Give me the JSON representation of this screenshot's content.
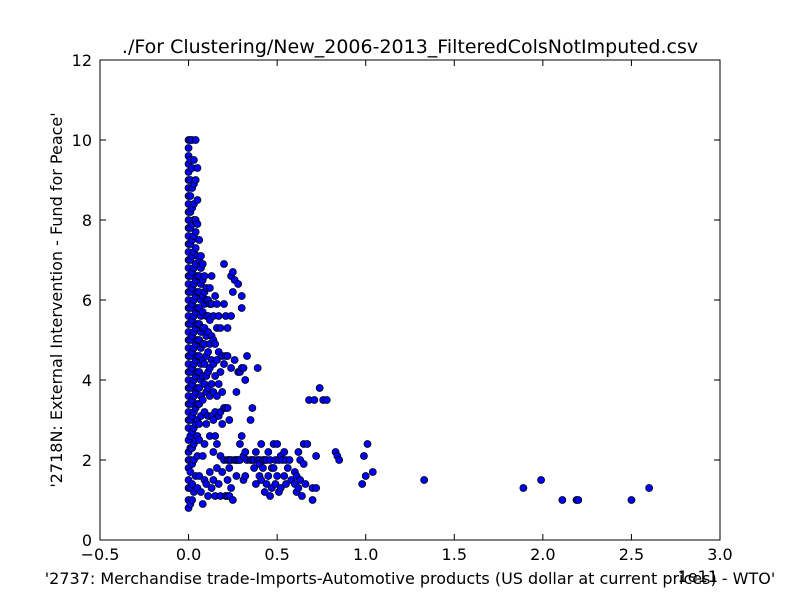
{
  "chart_data": {
    "type": "scatter",
    "title": "./For Clustering/New_2006-2013_FilteredColsNotImputed.csv",
    "xlabel": "'2737: Merchandise trade-Imports-Automotive products (US dollar at current prices) - WTO'",
    "ylabel": "'2718N: External Intervention - Fund for Peace'",
    "x_offset_label": "1e11",
    "xlim": [
      -0.5,
      3.0
    ],
    "ylim": [
      0,
      12
    ],
    "xticks": [
      -0.5,
      0.0,
      0.5,
      1.0,
      1.5,
      2.0,
      2.5,
      3.0
    ],
    "xtick_labels": [
      "−0.5",
      "0.0",
      "0.5",
      "1.0",
      "1.5",
      "2.0",
      "2.5",
      "3.0"
    ],
    "yticks": [
      0,
      2,
      4,
      6,
      8,
      10,
      12
    ],
    "ytick_labels": [
      "0",
      "2",
      "4",
      "6",
      "8",
      "10",
      "12"
    ],
    "grid": false,
    "marker_color": "#0000ff",
    "x_units_note": "x values in units of 1e11",
    "series": [
      {
        "x": [
          0.0,
          0.0,
          0.0,
          0.0,
          0.0,
          0.0,
          0.0,
          0.0,
          0.0,
          0.0,
          0.0,
          0.0,
          0.0,
          0.0,
          0.0,
          0.0,
          0.0,
          0.0,
          0.0,
          0.0,
          0.0,
          0.0,
          0.0,
          0.0,
          0.0,
          0.0,
          0.0,
          0.0,
          0.0,
          0.0,
          0.0,
          0.0,
          0.0,
          0.0,
          0.0,
          0.0,
          0.0,
          0.0,
          0.0,
          0.0,
          0.0,
          0.0,
          0.0,
          0.0,
          0.0,
          0.01,
          0.01,
          0.01,
          0.01,
          0.01,
          0.01,
          0.01,
          0.01,
          0.01,
          0.01,
          0.01,
          0.01,
          0.01,
          0.01,
          0.01,
          0.01,
          0.01,
          0.01,
          0.01,
          0.01,
          0.01,
          0.01,
          0.01,
          0.01,
          0.02,
          0.02,
          0.02,
          0.02,
          0.02,
          0.02,
          0.02,
          0.02,
          0.02,
          0.02,
          0.02,
          0.02,
          0.02,
          0.02,
          0.02,
          0.02,
          0.02,
          0.02,
          0.02,
          0.02,
          0.02,
          0.02,
          0.03,
          0.03,
          0.03,
          0.03,
          0.03,
          0.03,
          0.03,
          0.03,
          0.03,
          0.03,
          0.03,
          0.03,
          0.03,
          0.03,
          0.03,
          0.03,
          0.03,
          0.03,
          0.03,
          0.03,
          0.04,
          0.04,
          0.04,
          0.04,
          0.04,
          0.04,
          0.04,
          0.04,
          0.04,
          0.04,
          0.04,
          0.04,
          0.04,
          0.04,
          0.04,
          0.04,
          0.04,
          0.04,
          0.05,
          0.05,
          0.05,
          0.05,
          0.05,
          0.05,
          0.05,
          0.05,
          0.05,
          0.05,
          0.05,
          0.05,
          0.05,
          0.05,
          0.05,
          0.05,
          0.05,
          0.06,
          0.06,
          0.06,
          0.06,
          0.06,
          0.06,
          0.06,
          0.06,
          0.06,
          0.06,
          0.06,
          0.06,
          0.06,
          0.06,
          0.07,
          0.07,
          0.07,
          0.07,
          0.07,
          0.07,
          0.07,
          0.07,
          0.07,
          0.07,
          0.07,
          0.07,
          0.08,
          0.08,
          0.08,
          0.08,
          0.08,
          0.08,
          0.08,
          0.08,
          0.08,
          0.08,
          0.08,
          0.09,
          0.09,
          0.09,
          0.09,
          0.09,
          0.09,
          0.09,
          0.09,
          0.09,
          0.09,
          0.1,
          0.1,
          0.1,
          0.1,
          0.1,
          0.1,
          0.1,
          0.1,
          0.1,
          0.11,
          0.11,
          0.11,
          0.11,
          0.11,
          0.11,
          0.11,
          0.11,
          0.12,
          0.12,
          0.12,
          0.12,
          0.12,
          0.12,
          0.12,
          0.12,
          0.13,
          0.13,
          0.13,
          0.13,
          0.13,
          0.13,
          0.13,
          0.14,
          0.14,
          0.14,
          0.14,
          0.14,
          0.14,
          0.14,
          0.15,
          0.15,
          0.15,
          0.15,
          0.15,
          0.15,
          0.16,
          0.16,
          0.16,
          0.16,
          0.16,
          0.16,
          0.17,
          0.17,
          0.17,
          0.17,
          0.17,
          0.18,
          0.18,
          0.18,
          0.18,
          0.18,
          0.19,
          0.19,
          0.19,
          0.19,
          0.2,
          0.2,
          0.2,
          0.2,
          0.2,
          0.21,
          0.21,
          0.21,
          0.21,
          0.22,
          0.22,
          0.22,
          0.22,
          0.22,
          0.22,
          0.23,
          0.23,
          0.23,
          0.23,
          0.24,
          0.24,
          0.24,
          0.24,
          0.24,
          0.25,
          0.25,
          0.25,
          0.26,
          0.26,
          0.26,
          0.27,
          0.27,
          0.27,
          0.28,
          0.28,
          0.28,
          0.29,
          0.29,
          0.29,
          0.3,
          0.3,
          0.3,
          0.3,
          0.31,
          0.31,
          0.31,
          0.32,
          0.32,
          0.32,
          0.33,
          0.33,
          0.35,
          0.35,
          0.36,
          0.36,
          0.37,
          0.37,
          0.38,
          0.38,
          0.39,
          0.39,
          0.4,
          0.4,
          0.4,
          0.41,
          0.41,
          0.42,
          0.42,
          0.43,
          0.43,
          0.44,
          0.44,
          0.45,
          0.45,
          0.46,
          0.46,
          0.47,
          0.47,
          0.48,
          0.48,
          0.49,
          0.49,
          0.5,
          0.5,
          0.51,
          0.51,
          0.52,
          0.52,
          0.53,
          0.54,
          0.54,
          0.55,
          0.55,
          0.56,
          0.57,
          0.58,
          0.6,
          0.6,
          0.61,
          0.61,
          0.62,
          0.62,
          0.63,
          0.63,
          0.64,
          0.65,
          0.65,
          0.66,
          0.67,
          0.68,
          0.7,
          0.7,
          0.71,
          0.72,
          0.72,
          0.74,
          0.76,
          0.78,
          0.83,
          0.84,
          0.85,
          0.98,
          0.99,
          1.0,
          1.01,
          1.04,
          1.33,
          1.89,
          1.99,
          2.11,
          2.19,
          2.2,
          2.5,
          2.6
        ],
        "y": [
          10.0,
          9.8,
          9.6,
          9.4,
          9.2,
          9.0,
          8.8,
          8.6,
          8.4,
          8.2,
          8.0,
          7.8,
          7.6,
          7.4,
          7.2,
          7.0,
          6.8,
          6.6,
          6.4,
          6.2,
          6.0,
          5.8,
          5.6,
          5.4,
          5.2,
          5.0,
          4.8,
          4.6,
          4.4,
          4.2,
          4.0,
          3.8,
          3.6,
          3.4,
          3.2,
          3.0,
          2.8,
          2.5,
          2.2,
          2.0,
          1.8,
          1.5,
          1.3,
          1.0,
          0.8,
          10.0,
          9.5,
          9.0,
          8.6,
          8.2,
          7.8,
          7.4,
          7.0,
          6.6,
          6.2,
          5.8,
          5.4,
          5.0,
          4.6,
          4.2,
          3.8,
          3.4,
          3.0,
          2.6,
          2.3,
          2.0,
          1.7,
          1.3,
          0.9,
          10.0,
          9.3,
          8.8,
          8.3,
          7.9,
          7.5,
          7.1,
          6.7,
          6.3,
          5.9,
          5.5,
          5.1,
          4.7,
          4.3,
          3.9,
          3.5,
          3.1,
          2.7,
          2.3,
          1.9,
          1.4,
          1.0,
          9.5,
          8.9,
          8.4,
          8.0,
          7.6,
          7.2,
          6.8,
          6.4,
          6.0,
          5.6,
          5.2,
          4.8,
          4.4,
          4.0,
          3.6,
          3.2,
          2.8,
          2.4,
          2.0,
          1.2,
          10.0,
          9.0,
          8.0,
          7.7,
          7.3,
          6.9,
          6.5,
          6.1,
          5.7,
          5.3,
          4.9,
          4.5,
          4.1,
          3.7,
          3.3,
          2.9,
          2.5,
          1.6,
          9.3,
          8.5,
          7.9,
          7.1,
          6.6,
          6.2,
          5.8,
          5.4,
          5.0,
          4.6,
          4.2,
          3.8,
          3.4,
          3.0,
          2.6,
          2.1,
          1.3,
          7.5,
          7.0,
          6.6,
          6.2,
          5.8,
          5.4,
          5.0,
          4.6,
          4.2,
          3.8,
          3.4,
          2.9,
          2.5,
          1.6,
          7.1,
          6.8,
          6.4,
          6.0,
          5.6,
          5.2,
          4.8,
          4.4,
          4.0,
          3.6,
          3.1,
          1.2,
          6.9,
          6.5,
          6.1,
          5.7,
          5.3,
          4.9,
          4.5,
          4.1,
          3.5,
          2.1,
          0.9,
          6.6,
          6.2,
          5.9,
          5.3,
          4.9,
          4.4,
          3.9,
          3.2,
          2.4,
          1.5,
          6.3,
          6.0,
          5.6,
          5.1,
          4.6,
          4.1,
          3.7,
          2.9,
          1.4,
          6.0,
          5.6,
          5.2,
          4.7,
          4.2,
          3.8,
          3.1,
          1.1,
          6.3,
          5.9,
          5.5,
          4.9,
          4.3,
          3.6,
          2.6,
          1.7,
          6.6,
          5.9,
          5.1,
          4.5,
          3.9,
          3.1,
          1.3,
          5.6,
          5.0,
          4.4,
          3.7,
          3.0,
          2.2,
          1.5,
          6.1,
          4.9,
          4.1,
          3.2,
          2.6,
          1.1,
          5.9,
          5.3,
          4.5,
          3.6,
          2.4,
          1.8,
          5.6,
          4.7,
          3.9,
          3.1,
          1.4,
          5.3,
          4.2,
          3.2,
          2.1,
          1.1,
          4.6,
          3.7,
          2.9,
          1.7,
          6.9,
          5.9,
          4.4,
          3.3,
          2.0,
          5.6,
          4.6,
          3.3,
          1.1,
          5.3,
          4.6,
          3.3,
          2.0,
          1.5,
          1.1,
          3.0,
          2.0,
          1.8,
          1.1,
          6.6,
          5.6,
          4.3,
          2.0,
          1.3,
          6.7,
          6.2,
          1.0,
          6.5,
          4.5,
          2.0,
          3.7,
          2.0,
          1.6,
          6.4,
          4.2,
          2.0,
          4.2,
          2.4,
          2.0,
          6.1,
          5.8,
          4.3,
          2.6,
          4.3,
          2.1,
          1.5,
          4.0,
          2.2,
          1.6,
          4.6,
          2.0,
          3.0,
          2.0,
          3.3,
          2.0,
          2.0,
          1.8,
          2.2,
          1.4,
          4.3,
          2.0,
          2.0,
          1.9,
          1.6,
          2.4,
          1.5,
          1.8,
          2.0,
          2.0,
          1.2,
          1.4,
          2.0,
          2.2,
          1.6,
          2.0,
          1.1,
          1.8,
          1.3,
          2.4,
          1.8,
          2.0,
          1.4,
          2.4,
          1.6,
          2.0,
          1.2,
          2.1,
          1.3,
          2.0,
          2.2,
          1.6,
          2.0,
          1.4,
          1.8,
          2.0,
          1.5,
          1.7,
          1.4,
          1.6,
          1.2,
          2.2,
          1.3,
          2.0,
          1.5,
          1.1,
          2.4,
          1.9,
          1.4,
          2.4,
          3.5,
          1.3,
          1.0,
          3.5,
          1.3,
          2.1,
          3.8,
          3.5,
          3.5,
          2.2,
          2.1,
          2.0,
          1.4,
          2.1,
          1.6,
          2.4,
          1.7,
          1.5,
          1.3,
          1.5,
          1.0,
          1.0,
          1.0,
          1.0,
          1.3
        ]
      }
    ]
  }
}
